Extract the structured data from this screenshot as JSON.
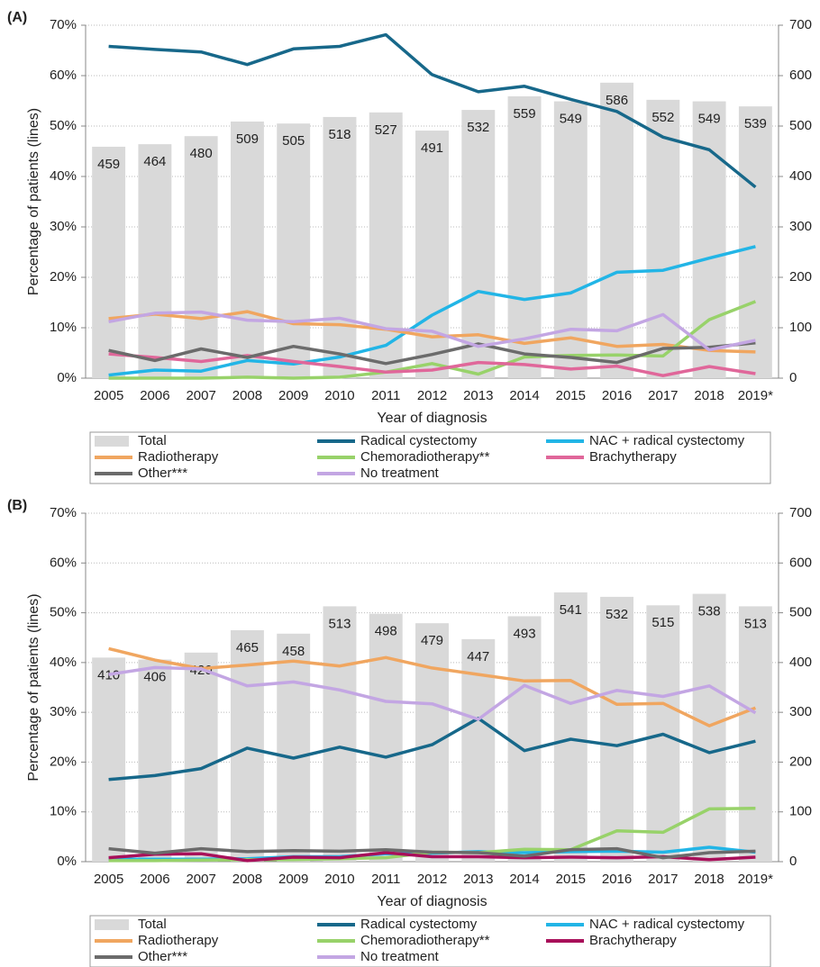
{
  "chart_data": [
    {
      "type": "combo",
      "label": "(A)",
      "x_label": "Year of diagnosis",
      "y_label": "Percentage of patients (lines)",
      "categories": [
        "2005",
        "2006",
        "2007",
        "2008",
        "2009",
        "2010",
        "2011",
        "2012",
        "2013",
        "2014",
        "2015",
        "2016",
        "2017",
        "2018",
        "2019*"
      ],
      "ylim": [
        0,
        70
      ],
      "yticks": [
        {
          "value": 0,
          "label": "0%"
        },
        {
          "value": 10,
          "label": "10%"
        },
        {
          "value": 20,
          "label": "20%"
        },
        {
          "value": 30,
          "label": "30%"
        },
        {
          "value": 40,
          "label": "40%"
        },
        {
          "value": 50,
          "label": "50%"
        },
        {
          "value": 60,
          "label": "60%"
        },
        {
          "value": 70,
          "label": "70%"
        }
      ],
      "y2lim": [
        0,
        700
      ],
      "y2ticks": [
        0,
        100,
        200,
        300,
        400,
        500,
        600,
        700
      ],
      "grid": true,
      "legend": "bottom",
      "data_labels": true,
      "series": [
        {
          "name": "Total",
          "type": "bar",
          "axis": "y2",
          "color": "#d9d9d9",
          "values": [
            459,
            464,
            480,
            509,
            505,
            518,
            527,
            491,
            532,
            559,
            549,
            586,
            552,
            549,
            539
          ]
        },
        {
          "name": "Radical cystectomy",
          "type": "line",
          "color": "#17688a",
          "values": [
            65.8,
            65.2,
            64.7,
            62.2,
            65.3,
            65.8,
            68.1,
            60.2,
            56.8,
            57.9,
            55.3,
            52.9,
            47.8,
            45.3,
            37.9
          ]
        },
        {
          "name": "NAC + radical cystectomy",
          "type": "line",
          "color": "#22b5e6",
          "values": [
            0.6,
            1.6,
            1.4,
            3.5,
            2.8,
            4.2,
            6.5,
            12.5,
            17.2,
            15.6,
            16.9,
            21.0,
            21.4,
            23.8,
            26.1
          ]
        },
        {
          "name": "Radiotherapy",
          "type": "line",
          "color": "#f0a660",
          "values": [
            11.8,
            12.7,
            11.8,
            13.2,
            10.8,
            10.6,
            9.7,
            8.2,
            8.6,
            6.9,
            8.0,
            6.3,
            6.7,
            5.5,
            5.2
          ]
        },
        {
          "name": "Chemoradiotherapy**",
          "type": "line",
          "color": "#98d26a",
          "values": [
            0,
            0,
            0,
            0.2,
            0,
            0.2,
            1.2,
            2.9,
            0.8,
            4.2,
            4.5,
            4.6,
            4.4,
            11.6,
            15.2
          ]
        },
        {
          "name": "Brachytherapy",
          "type": "line",
          "color": "#e0679a",
          "values": [
            4.8,
            4.1,
            3.3,
            4.5,
            3.3,
            2.3,
            1.2,
            1.6,
            3.1,
            2.7,
            1.8,
            2.4,
            0.5,
            2.3,
            0.9
          ]
        },
        {
          "name": "Other***",
          "type": "line",
          "color": "#6b6b6b",
          "values": [
            5.5,
            3.5,
            5.8,
            4.1,
            6.3,
            4.8,
            2.9,
            4.7,
            6.8,
            4.8,
            4.1,
            3.1,
            5.9,
            6.1,
            7.0
          ]
        },
        {
          "name": "No treatment",
          "type": "line",
          "color": "#c3a6e3",
          "values": [
            11.2,
            12.9,
            13.1,
            11.5,
            11.2,
            11.9,
            9.8,
            9.3,
            6.3,
            7.8,
            9.7,
            9.4,
            12.6,
            5.6,
            7.5
          ]
        }
      ]
    },
    {
      "type": "combo",
      "label": "(B)",
      "x_label": "Year of diagnosis",
      "y_label": "Percentage of patients (lines)",
      "categories": [
        "2005",
        "2006",
        "2007",
        "2008",
        "2009",
        "2010",
        "2011",
        "2012",
        "2013",
        "2014",
        "2015",
        "2016",
        "2017",
        "2018",
        "2019*"
      ],
      "ylim": [
        0,
        70
      ],
      "yticks": [
        {
          "value": 0,
          "label": "0%"
        },
        {
          "value": 10,
          "label": "10%"
        },
        {
          "value": 20,
          "label": "20%"
        },
        {
          "value": 30,
          "label": "30%"
        },
        {
          "value": 40,
          "label": "40%"
        },
        {
          "value": 50,
          "label": "50%"
        },
        {
          "value": 60,
          "label": "60%"
        },
        {
          "value": 70,
          "label": "70%"
        }
      ],
      "y2lim": [
        0,
        700
      ],
      "y2ticks": [
        0,
        100,
        200,
        300,
        400,
        500,
        600,
        700
      ],
      "grid": true,
      "legend": "bottom",
      "data_labels": true,
      "series": [
        {
          "name": "Total",
          "type": "bar",
          "axis": "y2",
          "color": "#d9d9d9",
          "values": [
            410,
            406,
            420,
            465,
            458,
            513,
            498,
            479,
            447,
            493,
            541,
            532,
            515,
            538,
            513
          ]
        },
        {
          "name": "Radical cystectomy",
          "type": "line",
          "color": "#17688a",
          "values": [
            16.5,
            17.3,
            18.7,
            22.8,
            20.8,
            23.0,
            21.0,
            23.5,
            28.8,
            22.3,
            24.6,
            23.3,
            25.6,
            21.9,
            24.2
          ]
        },
        {
          "name": "NAC + radical cystectomy",
          "type": "line",
          "color": "#22b5e6",
          "values": [
            0.5,
            0.5,
            0.5,
            0.6,
            1.0,
            1.0,
            1.6,
            1.7,
            2.0,
            1.8,
            2.0,
            2.1,
            1.9,
            2.9,
            1.9
          ]
        },
        {
          "name": "Radiotherapy",
          "type": "line",
          "color": "#f0a660",
          "values": [
            42.8,
            40.5,
            38.8,
            39.5,
            40.3,
            39.3,
            41.0,
            38.9,
            37.6,
            36.3,
            36.4,
            31.6,
            31.8,
            27.3,
            30.9
          ]
        },
        {
          "name": "Chemoradiotherapy**",
          "type": "line",
          "color": "#98d26a",
          "values": [
            0.2,
            0.2,
            0.3,
            0.4,
            0.4,
            0.6,
            0.8,
            1.9,
            1.8,
            2.5,
            2.4,
            6.2,
            5.9,
            10.6,
            10.7
          ]
        },
        {
          "name": "Brachytherapy",
          "type": "line",
          "color": "#a8105a",
          "values": [
            0.8,
            1.5,
            1.6,
            0.2,
            0.9,
            0.8,
            1.8,
            1.0,
            1.0,
            0.8,
            0.9,
            0.8,
            1.0,
            0.4,
            0.9
          ]
        },
        {
          "name": "Other***",
          "type": "line",
          "color": "#6b6b6b",
          "values": [
            2.6,
            1.7,
            2.6,
            2.0,
            2.2,
            2.1,
            2.4,
            1.9,
            1.8,
            1.1,
            2.4,
            2.6,
            0.8,
            1.8,
            2.1
          ]
        },
        {
          "name": "No treatment",
          "type": "line",
          "color": "#c3a6e3",
          "values": [
            37.6,
            39.0,
            38.7,
            35.3,
            36.1,
            34.5,
            32.2,
            31.7,
            28.6,
            35.4,
            31.8,
            34.4,
            33.2,
            35.3,
            29.9
          ]
        }
      ]
    }
  ]
}
